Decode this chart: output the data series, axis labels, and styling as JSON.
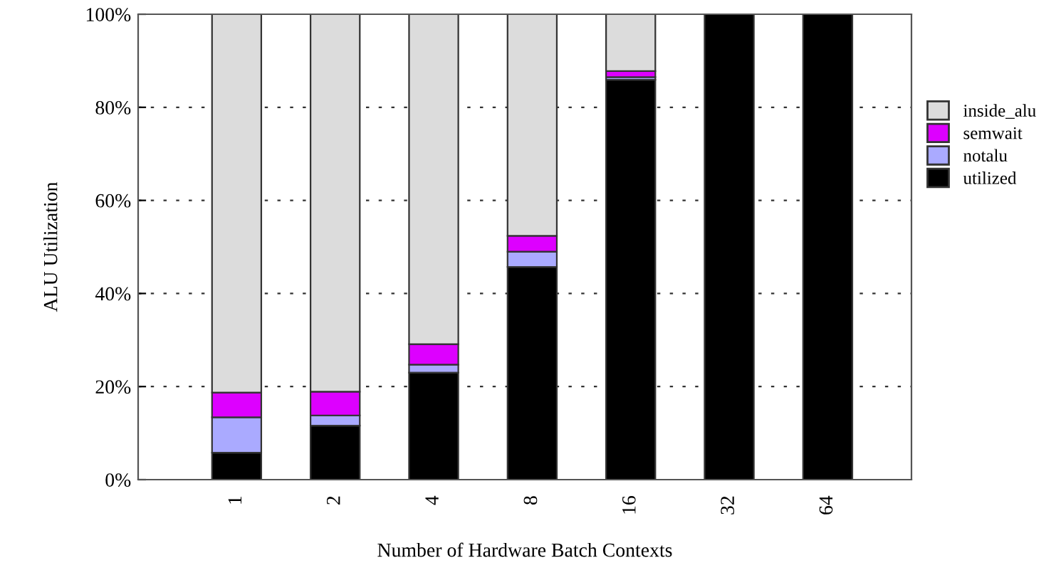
{
  "chart_data": {
    "type": "bar",
    "stacked": true,
    "xlabel": "Number of Hardware Batch Contexts",
    "ylabel": "ALU Utilization",
    "categories": [
      "1",
      "2",
      "4",
      "8",
      "16",
      "32",
      "64"
    ],
    "series": [
      {
        "name": "utilized",
        "color": "#000000",
        "values": [
          5.8,
          11.6,
          23.0,
          45.7,
          85.9,
          100,
          100
        ]
      },
      {
        "name": "notalu",
        "color": "#aaaaff",
        "values": [
          7.6,
          2.2,
          1.7,
          3.3,
          0.6,
          0,
          0
        ]
      },
      {
        "name": "semwait",
        "color": "#dd00ff",
        "values": [
          5.3,
          5.1,
          4.4,
          3.4,
          1.3,
          0,
          0
        ]
      },
      {
        "name": "inside_alu",
        "color": "#dcdcdc",
        "values": [
          81.3,
          81.1,
          70.9,
          47.6,
          12.2,
          0,
          0
        ]
      }
    ],
    "ylim": [
      0,
      100
    ],
    "yticks": [
      {
        "value": 0,
        "label": "0%"
      },
      {
        "value": 20,
        "label": "20%"
      },
      {
        "value": 40,
        "label": "40%"
      },
      {
        "value": 60,
        "label": "60%"
      },
      {
        "value": 80,
        "label": "80%"
      },
      {
        "value": 100,
        "label": "100%"
      }
    ],
    "grid": "y",
    "legend": "right"
  }
}
